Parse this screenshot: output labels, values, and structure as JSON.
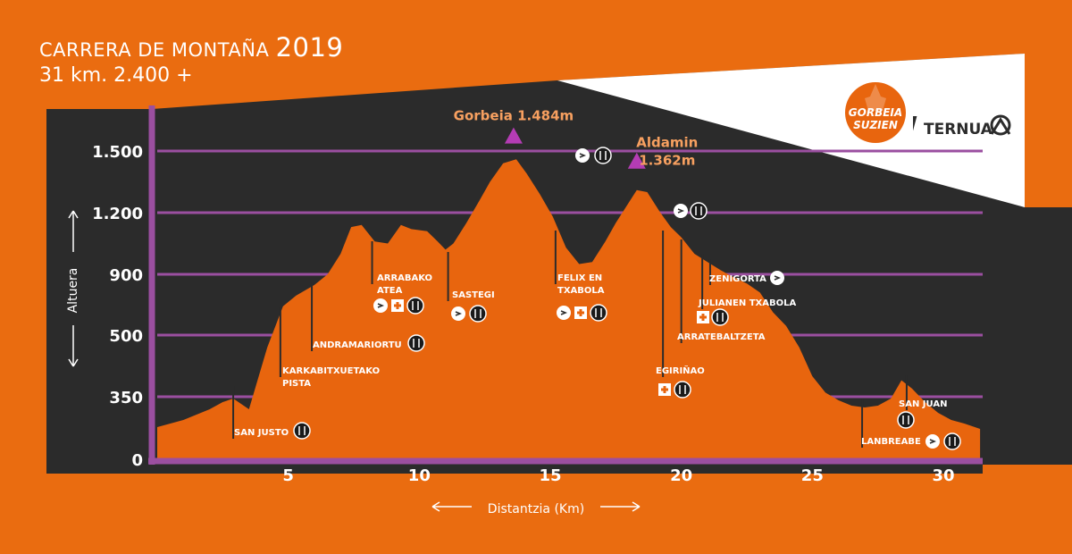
{
  "header": {
    "title_main": "CARRERA DE MONTAÑA",
    "title_year": "2019",
    "subtitle": "31 km. 2.400 +"
  },
  "brand": {
    "logo_line1": "GORBEIA",
    "logo_line2": "SUZIEN",
    "sponsor": "TERNUA"
  },
  "colors": {
    "background": "#ea6c10",
    "panel": "#2b2b2b",
    "gridline": "#9b4fa0",
    "profile_fill": "#e8650e",
    "peak_marker": "#b43cb4",
    "peak_text": "#f7a060"
  },
  "chart_data": {
    "type": "area",
    "title": "",
    "xlabel": "Distantzia (Km)",
    "ylabel": "Altuera",
    "x_ticks": [
      5,
      10,
      15,
      20,
      25,
      30
    ],
    "xlim": [
      0,
      31.5
    ],
    "y_ticks": [
      {
        "value": 0,
        "label": "0"
      },
      {
        "value": 350,
        "label": "350"
      },
      {
        "value": 500,
        "label": "500"
      },
      {
        "value": 900,
        "label": "900"
      },
      {
        "value": 1200,
        "label": "1.200"
      },
      {
        "value": 1500,
        "label": "1.500"
      }
    ],
    "y_scale_note": "non-linear: gridlines equally spaced",
    "series": [
      {
        "x": [
          0,
          1,
          2,
          2.5,
          2.9,
          3.5,
          4.2,
          4.8,
          5.3,
          6.0,
          6.5,
          7.0,
          7.4,
          7.8,
          8.3,
          8.8,
          9.3,
          9.7,
          10.3,
          10.7,
          11.0,
          11.3,
          11.8,
          12.3,
          12.7,
          13.2,
          13.7,
          14.1,
          14.6,
          15.1,
          15.6,
          16.1,
          16.6,
          17.1,
          17.5,
          18.0,
          18.3,
          18.7,
          19.2,
          19.6,
          20.0,
          20.5,
          21.0,
          21.5,
          22.0,
          22.5,
          23.0,
          23.5,
          24.0,
          24.5,
          25.0,
          25.5,
          26.0,
          26.5,
          27.0,
          27.5,
          28.0,
          28.4,
          28.8,
          29.3,
          29.8,
          30.3,
          30.8,
          31.4
        ],
        "y": [
          180,
          220,
          280,
          320,
          340,
          280,
          470,
          690,
          760,
          830,
          900,
          1000,
          1130,
          1140,
          1060,
          1050,
          1140,
          1120,
          1110,
          1060,
          1020,
          1050,
          1150,
          1260,
          1350,
          1440,
          1460,
          1390,
          1290,
          1180,
          1030,
          950,
          960,
          1060,
          1150,
          1250,
          1310,
          1300,
          1200,
          1130,
          1080,
          1000,
          960,
          920,
          880,
          840,
          780,
          650,
          560,
          470,
          400,
          360,
          330,
          300,
          290,
          300,
          340,
          390,
          370,
          320,
          260,
          220,
          200,
          170
        ]
      }
    ],
    "peaks": [
      {
        "name": "Gorbeia 1.484m",
        "x": 13.6,
        "y": 1484
      },
      {
        "name": "Aldamin",
        "value_label": "1.362m",
        "x": 18.3,
        "y": 1362
      }
    ],
    "points": [
      {
        "label": "SAN JUSTO",
        "x": 2.9
      },
      {
        "label": "KARKABITXUETAKO",
        "label2": "PISTA",
        "x": 4.7
      },
      {
        "label": "ANDRAMARIORTU",
        "x": 5.9
      },
      {
        "label": "ARRABAKO",
        "label2": "ATEA",
        "x": 8.2
      },
      {
        "label": "SASTEGI",
        "x": 11.1
      },
      {
        "label": "FELIX EN",
        "label2": "TXABOLA",
        "x": 15.2
      },
      {
        "label": "EGIRIÑAO",
        "x": 19.3
      },
      {
        "label": "ARRATEBALTZETA",
        "x": 20.0
      },
      {
        "label": "JULIANEN TXABOLA",
        "x": 20.8
      },
      {
        "label": "ZENIGORTA",
        "x": 21.1
      },
      {
        "label": "SAN JUAN",
        "x": 28.6
      },
      {
        "label": "LANBREABE",
        "x": 26.9
      }
    ]
  }
}
